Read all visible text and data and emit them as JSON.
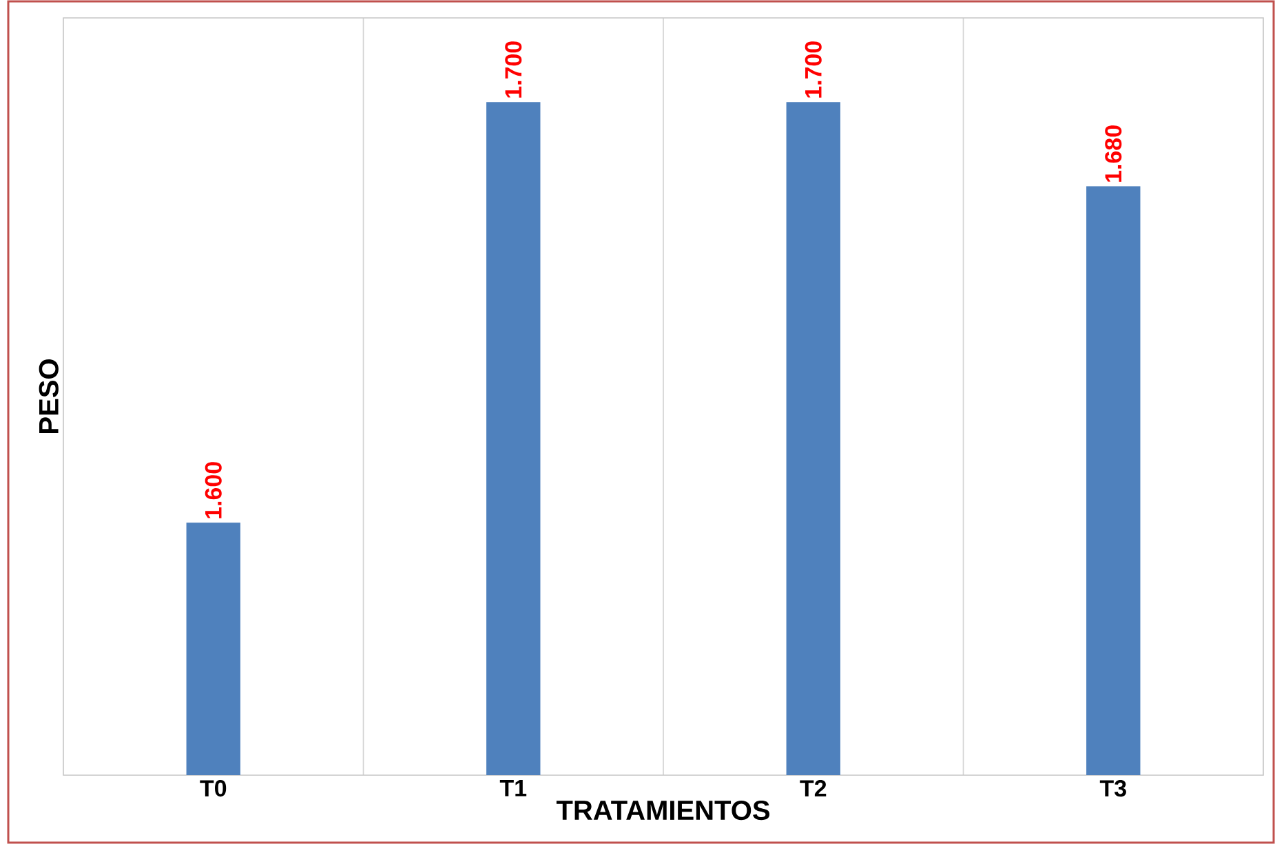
{
  "chart_data": {
    "type": "bar",
    "xlabel": "TRATAMIENTOS",
    "ylabel": "PESO",
    "categories": [
      "T0",
      "T1",
      "T2",
      "T3"
    ],
    "values": [
      1.6,
      1.7,
      1.7,
      1.68
    ],
    "value_labels": [
      "1.600",
      "1.700",
      "1.700",
      "1.680"
    ],
    "color": "#4f81bd",
    "ylim": [
      1.54,
      1.72
    ],
    "tick_labels": "x",
    "grid": "x"
  }
}
